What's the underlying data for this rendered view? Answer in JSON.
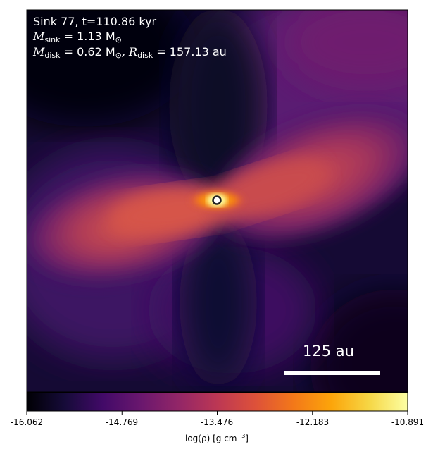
{
  "annotation": {
    "line1": "Sink 77, t=110.86 kyr",
    "sink_mass_label": "M",
    "sink_mass_sub": "sink",
    "sink_mass_value": " = 1.13 M",
    "sink_mass_unit_sub": "⊙",
    "disk_mass_label": "M",
    "disk_mass_sub": "disk",
    "disk_mass_value": " = 0.62 M",
    "disk_mass_unit_sub": "⊙",
    "disk_radius_label": ", R",
    "disk_radius_sub": "disk",
    "disk_radius_value": " = 157.13 au"
  },
  "scalebar": {
    "label": "125 au"
  },
  "colorbar": {
    "label_pre": "log(ρ) [g cm",
    "label_sup": "−3",
    "label_post": "]",
    "ticks": [
      "-16.062",
      "-14.769",
      "-13.476",
      "-12.183",
      "-10.891"
    ],
    "vmin": -16.062,
    "vmax": -10.891,
    "colormap": "inferno"
  },
  "colors": {
    "background_dark": "#07061c",
    "outflow_purple": "#4a1a6e",
    "disk_orange": "#e0623f",
    "core_yellow": "#fcffa4"
  }
}
